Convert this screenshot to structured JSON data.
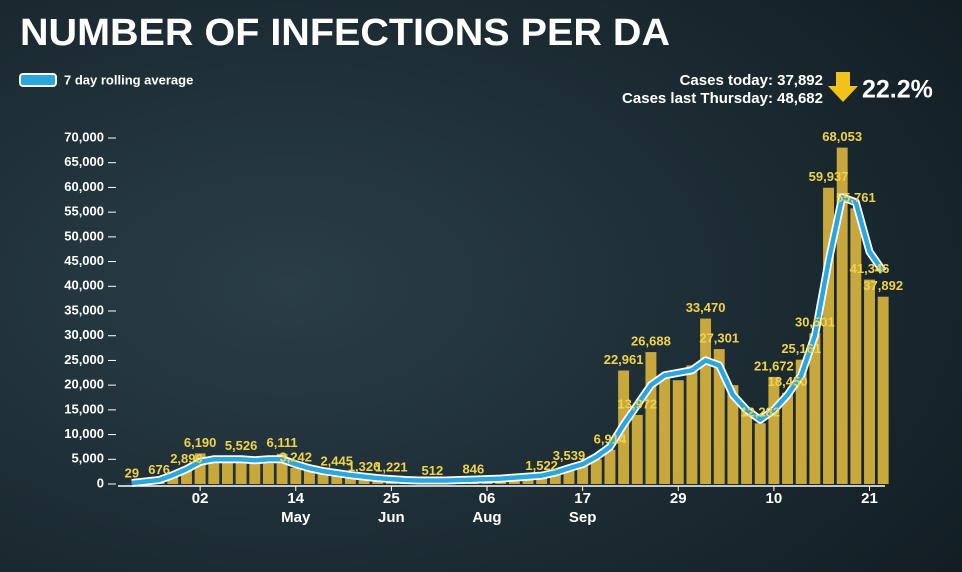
{
  "header": {
    "cases_today": "Cases today: 37,892",
    "cases_last_thursday": "Cases last Thursday: 48,682",
    "change": "22.2%"
  },
  "chart_data": {
    "type": "bar",
    "title": "NUMBER OF INFECTIONS PER DA",
    "categories": [
      null,
      null,
      null,
      null,
      null,
      "02",
      null,
      null,
      null,
      null,
      null,
      null,
      "14",
      null,
      null,
      null,
      null,
      null,
      null,
      "25",
      null,
      null,
      null,
      null,
      null,
      null,
      "06",
      null,
      null,
      null,
      null,
      null,
      null,
      "17",
      null,
      null,
      null,
      null,
      null,
      null,
      "29",
      null,
      null,
      null,
      null,
      null,
      null,
      "10",
      null,
      null,
      null,
      null,
      null,
      null,
      "21",
      null
    ],
    "x_sublabels": [
      null,
      null,
      null,
      null,
      null,
      null,
      null,
      null,
      null,
      null,
      null,
      null,
      "May",
      null,
      null,
      null,
      null,
      null,
      null,
      "Jun",
      null,
      null,
      null,
      null,
      null,
      null,
      "Aug",
      null,
      null,
      null,
      null,
      null,
      null,
      "Sep",
      null,
      null,
      null,
      null,
      null,
      null,
      null,
      null,
      null,
      null,
      null,
      null,
      null,
      null,
      null,
      null,
      null,
      null,
      null,
      null,
      null,
      null
    ],
    "values": [
      29,
      300,
      676,
      1500,
      2890,
      6190,
      5000,
      4800,
      5526,
      4500,
      4200,
      6111,
      3242,
      3000,
      2500,
      2445,
      1800,
      1326,
      1100,
      1221,
      800,
      700,
      512,
      700,
      800,
      846,
      1000,
      1200,
      1300,
      1400,
      1522,
      2500,
      3539,
      4000,
      5000,
      6914,
      22961,
      13972,
      26688,
      22000,
      21000,
      24000,
      33470,
      27301,
      20000,
      15000,
      12282,
      21672,
      18450,
      25161,
      30501,
      59937,
      68053,
      55761,
      41346,
      37892
    ],
    "value_labels": [
      "29",
      null,
      "676",
      null,
      "2,890",
      "6,190",
      null,
      null,
      "5,526",
      null,
      null,
      "6,111",
      "3,242",
      null,
      null,
      "2,445",
      null,
      "1,326",
      null,
      "1,221",
      null,
      null,
      "512",
      null,
      null,
      "846",
      null,
      null,
      null,
      null,
      "1,522",
      null,
      "3,539",
      null,
      null,
      "6,914",
      "22,961",
      "13,972",
      "26,688",
      null,
      null,
      null,
      "33,470",
      "27,301",
      null,
      null,
      "12,282",
      "21,672",
      "18,450",
      "25,161",
      "30,501",
      "59,937",
      "68,053",
      "55,761",
      "41,346",
      "37,892"
    ],
    "color": "#c8a83c",
    "rolling_average": {
      "name": "7 day rolling average",
      "color": "#2aa7df",
      "values": [
        200,
        500,
        800,
        1800,
        3000,
        4500,
        5000,
        5000,
        5000,
        4800,
        5000,
        5000,
        4000,
        3200,
        2600,
        2200,
        1800,
        1500,
        1200,
        1000,
        800,
        700,
        700,
        700,
        800,
        900,
        1000,
        1100,
        1300,
        1500,
        1700,
        2300,
        3200,
        4000,
        5500,
        7500,
        12000,
        16000,
        20000,
        22000,
        22500,
        23000,
        25000,
        24000,
        18000,
        15000,
        13000,
        15000,
        18000,
        22000,
        30000,
        45000,
        58000,
        57000,
        47000,
        43000
      ]
    },
    "ylim": [
      0,
      70000
    ],
    "yticks": [
      0,
      {
        "value": 5000,
        "label": "5,000"
      },
      {
        "value": 10000,
        "label": "10,000"
      },
      {
        "value": 15000,
        "label": "15,000"
      },
      {
        "value": 20000,
        "label": "20,000"
      },
      {
        "value": 25000,
        "label": "25,000"
      },
      {
        "value": 30000,
        "label": "30,000"
      },
      {
        "value": 35000,
        "label": "35,000"
      },
      {
        "value": 40000,
        "label": "40,000"
      },
      {
        "value": 45000,
        "label": "45,000"
      },
      {
        "value": 50000,
        "label": "50,000"
      },
      {
        "value": 55000,
        "label": "55,000"
      },
      {
        "value": 60000,
        "label": "60,000"
      },
      {
        "value": 65000,
        "label": "65,000"
      },
      {
        "value": 70000,
        "label": "70,000"
      }
    ]
  }
}
